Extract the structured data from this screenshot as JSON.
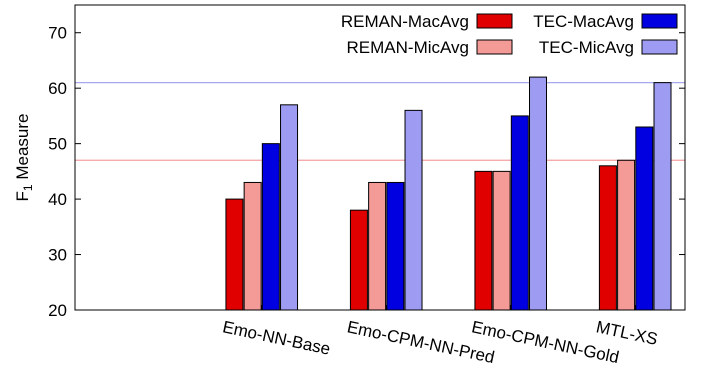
{
  "chart_data": {
    "type": "bar",
    "title": "",
    "xlabel": "",
    "ylabel": "Measure",
    "ylabel_prefix": "F",
    "ylabel_subscript": "1",
    "ylim": [
      20,
      75
    ],
    "yticks": [
      20,
      30,
      40,
      50,
      60,
      70
    ],
    "x_domain": [
      0,
      4.9
    ],
    "grid": false,
    "legend": "top-right",
    "categories": [
      "Emo-NN-Base",
      "Emo-CPM-NN-Pred",
      "Emo-CPM-NN-Gold",
      "MTL-XS"
    ],
    "category_positions": [
      1.5,
      2.5,
      3.5,
      4.5
    ],
    "series": [
      {
        "name": "REMAN-MacAvg",
        "values": [
          40,
          38,
          45,
          46
        ],
        "color": "#e00000"
      },
      {
        "name": "REMAN-MicAvg",
        "values": [
          43,
          43,
          45,
          47
        ],
        "color": "#f59b97"
      },
      {
        "name": "TEC-MacAvg",
        "values": [
          50,
          43,
          55,
          53
        ],
        "color": "#0000e0"
      },
      {
        "name": "TEC-MicAvg",
        "values": [
          57,
          56,
          62,
          61
        ],
        "color": "#9e9cf2"
      }
    ],
    "reference_lines": [
      {
        "value": 47,
        "color": "#f4a0a0"
      },
      {
        "value": 61,
        "color": "#a8a8f0"
      }
    ]
  }
}
